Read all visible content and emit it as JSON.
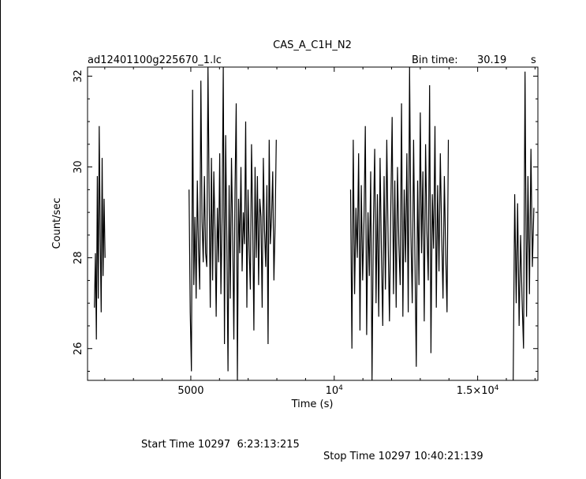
{
  "chart_data": {
    "type": "line",
    "title": "CAS_A_C1H_N2",
    "file_label": "ad12401100g225670_1.lc",
    "bin_time_label": "Bin time:",
    "bin_time_value": "30.19",
    "bin_time_unit": "s",
    "xlabel": "Time (s)",
    "ylabel": "Count/sec",
    "xlim": [
      1400,
      17100
    ],
    "ylim": [
      25.3,
      32.2
    ],
    "xticks": [
      {
        "value": 5000,
        "label": "5000"
      },
      {
        "value": 10000,
        "label": "10^4"
      },
      {
        "value": 15000,
        "label": "1.5×10^4"
      }
    ],
    "yticks": [
      {
        "value": 26,
        "label": "26"
      },
      {
        "value": 28,
        "label": "28"
      },
      {
        "value": 30,
        "label": "30"
      },
      {
        "value": 32,
        "label": "32"
      }
    ],
    "segments": [
      {
        "x_start": 1640,
        "x_end": 2010,
        "values": [
          26.9,
          28.1,
          26.2,
          29.8,
          27.1,
          30.9,
          28.4,
          26.8,
          30.2,
          27.6,
          29.3,
          28.0
        ]
      },
      {
        "x_start": 4940,
        "x_end": 7980,
        "values": [
          29.5,
          26.8,
          25.5,
          31.7,
          27.4,
          28.9,
          27.1,
          29.7,
          28.2,
          27.3,
          31.9,
          28.8,
          27.9,
          29.8,
          28.1,
          27.8,
          32.2,
          29.6,
          26.9,
          30.2,
          27.5,
          29.9,
          28.6,
          26.7,
          29.1,
          27.9,
          30.3,
          27.2,
          28.9,
          32.2,
          26.1,
          30.7,
          28.4,
          25.5,
          29.6,
          27.1,
          30.2,
          28.6,
          26.2,
          29.5,
          31.4,
          25.2,
          29.3,
          28.1,
          30.0,
          27.7,
          29.0,
          28.3,
          31.0,
          26.9,
          29.5,
          28.2,
          27.3,
          30.5,
          28.8,
          26.4,
          30.0,
          28.0,
          29.8,
          27.4,
          29.3,
          28.9,
          26.9,
          30.2,
          28.6,
          27.8,
          29.6,
          26.1,
          30.6,
          28.3,
          28.9,
          29.9,
          27.5,
          28.7,
          30.6
        ]
      },
      {
        "x_start": 10570,
        "x_end": 13980,
        "values": [
          29.5,
          26.0,
          30.6,
          27.2,
          29.1,
          28.0,
          30.3,
          26.4,
          29.6,
          27.5,
          28.8,
          30.9,
          26.3,
          29.0,
          27.6,
          29.9,
          25.3,
          28.7,
          30.4,
          27.0,
          29.4,
          26.7,
          30.2,
          28.1,
          26.5,
          29.8,
          27.3,
          30.6,
          28.4,
          26.6,
          29.1,
          31.1,
          27.2,
          29.7,
          26.9,
          30.0,
          28.3,
          27.4,
          31.4,
          26.7,
          29.5,
          27.9,
          30.3,
          26.8,
          32.2,
          28.5,
          27.0,
          30.6,
          28.0,
          25.6,
          29.7,
          27.4,
          31.2,
          28.1,
          29.9,
          26.6,
          30.5,
          28.6,
          27.5,
          31.8,
          25.9,
          29.4,
          28.2,
          30.9,
          26.9,
          29.6,
          27.7,
          30.3,
          28.5,
          27.1,
          29.8,
          28.1,
          26.8,
          30.6
        ]
      },
      {
        "x_start": 16240,
        "x_end": 16960,
        "values": [
          25.2,
          29.4,
          27.0,
          29.2,
          26.5,
          28.5,
          27.1,
          26.0,
          32.1,
          26.7,
          29.8,
          27.2,
          30.4,
          27.8,
          29.1
        ]
      }
    ]
  },
  "footer": {
    "start_time": "Start Time 10297  6:23:13:215",
    "stop_time": "Stop Time 10297 10:40:21:139"
  }
}
